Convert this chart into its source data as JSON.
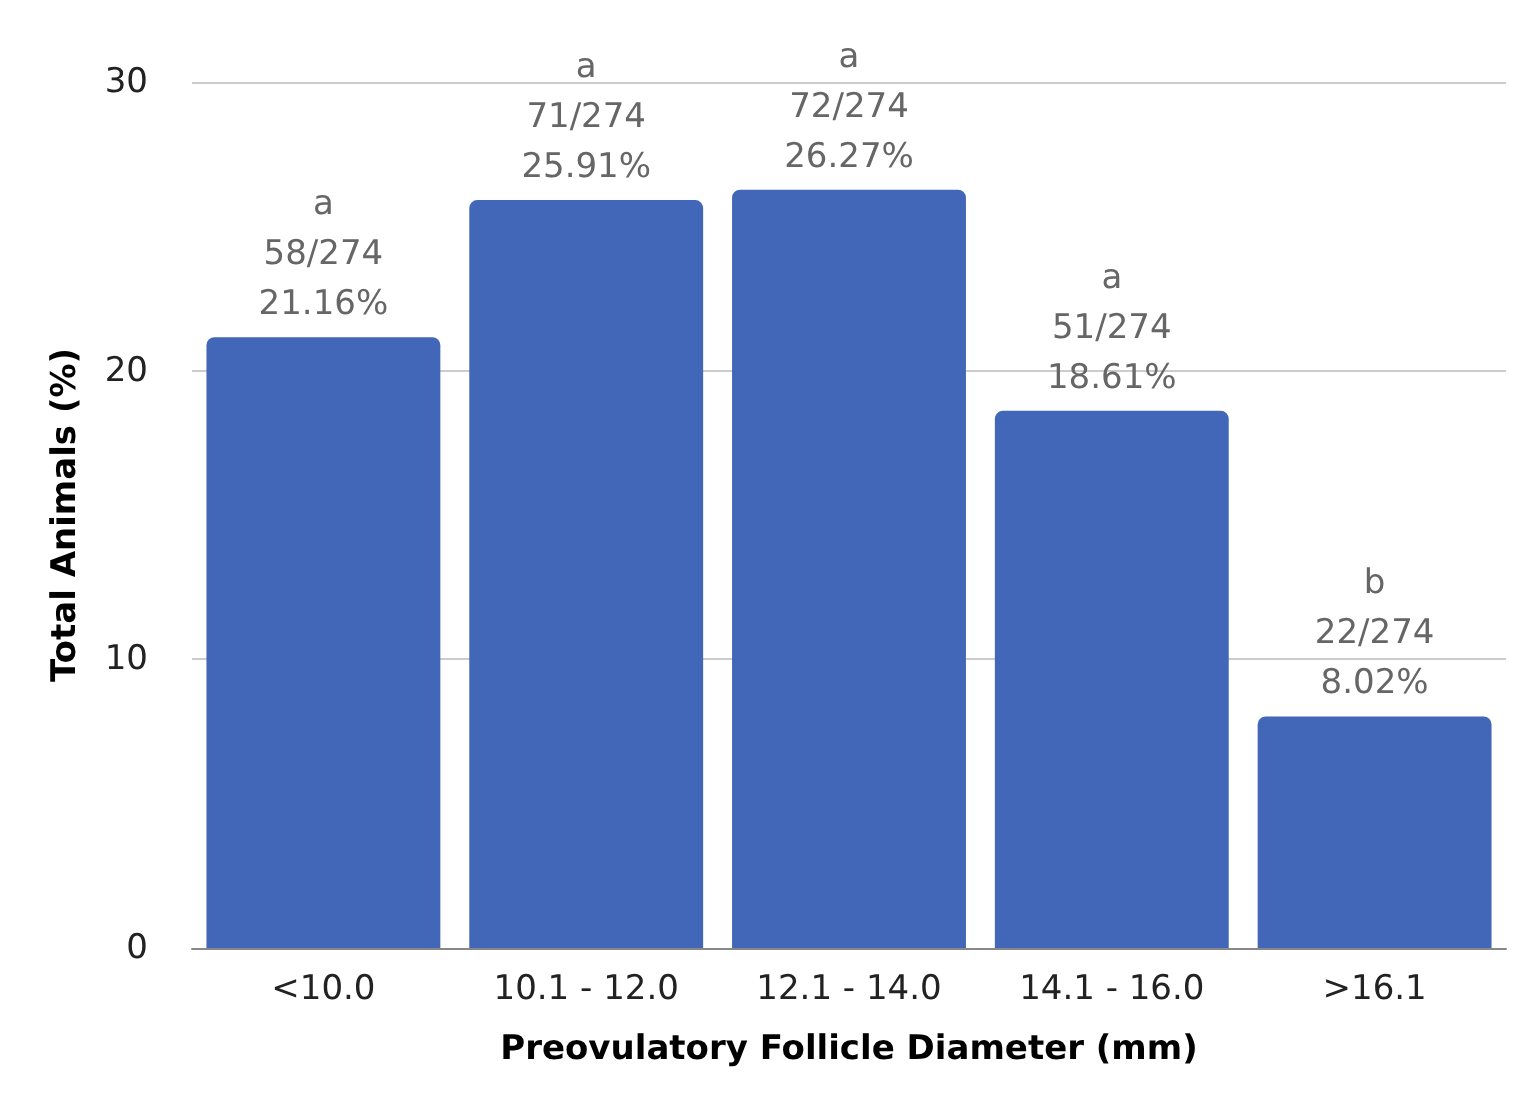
{
  "chart_data": {
    "type": "bar",
    "xlabel": "Preovulatory Follicle Diameter (mm)",
    "ylabel": "Total Animals (%)",
    "categories": [
      "<10.0",
      "10.1 - 12.0",
      "12.1 - 14.0",
      "14.1 - 16.0",
      ">16.1"
    ],
    "values": [
      21.16,
      25.91,
      26.27,
      18.61,
      8.02
    ],
    "value_labels": [
      "a\n58/274\n21.16%",
      "a\n71/274\n25.91%",
      "a\n72/274\n26.27%",
      "a\n51/274\n18.61%",
      "b\n22/274\n8.02%"
    ],
    "color": "#4267b8",
    "ylim": [
      0,
      30
    ],
    "yticks": [
      0,
      10,
      20,
      30
    ],
    "grid": "y"
  }
}
